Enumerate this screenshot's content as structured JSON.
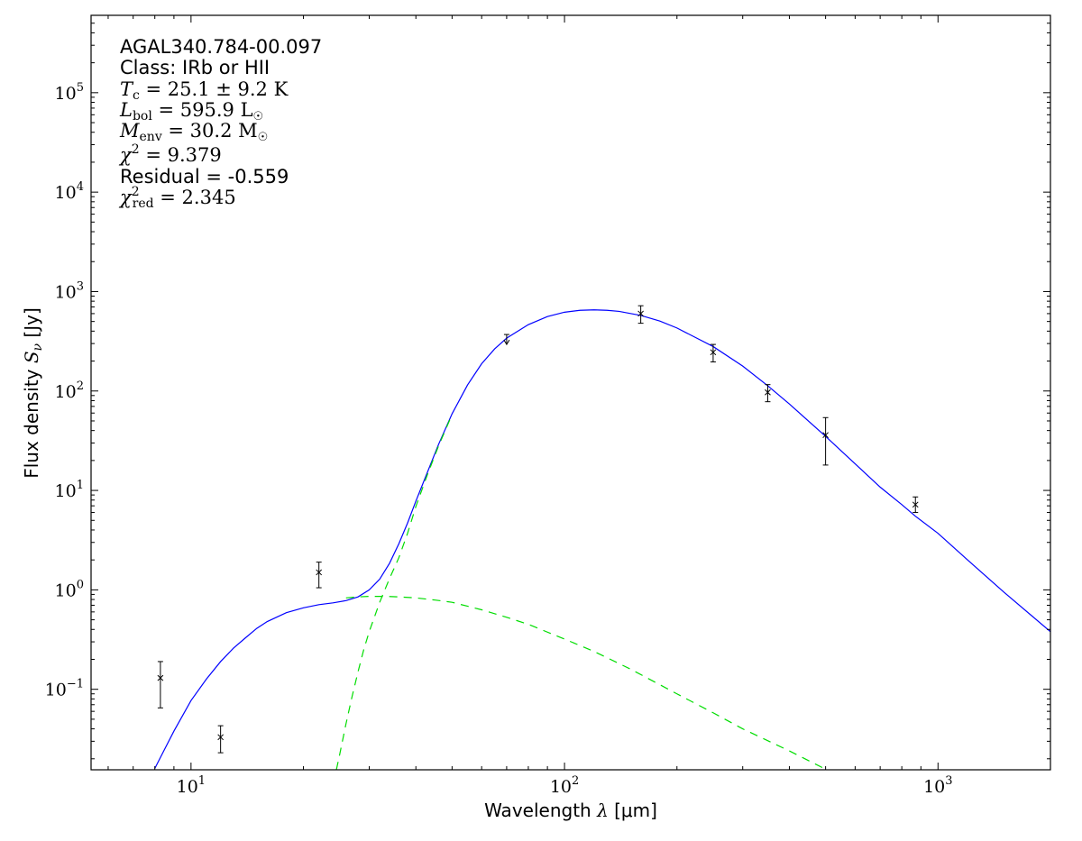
{
  "chart_data": {
    "type": "line",
    "title": "",
    "xlabel_pre": "Wavelength ",
    "xlabel_sym": "λ",
    "xlabel_unit": " [μm]",
    "ylabel_pre": "Flux density ",
    "ylabel_sym": "S",
    "ylabel_sub": "ν",
    "ylabel_unit": " [Jy]",
    "xscale": "log",
    "yscale": "log",
    "xlim": [
      5.4,
      2000
    ],
    "ylim": [
      0.0155,
      600000
    ],
    "grid": false,
    "x_ticks": [
      {
        "value": 10,
        "base": "10",
        "exp": "1"
      },
      {
        "value": 100,
        "base": "10",
        "exp": "2"
      },
      {
        "value": 1000,
        "base": "10",
        "exp": "3"
      }
    ],
    "y_ticks": [
      {
        "value": 0.1,
        "base": "10",
        "exp": "−1"
      },
      {
        "value": 1,
        "base": "10",
        "exp": "0"
      },
      {
        "value": 10,
        "base": "10",
        "exp": "1"
      },
      {
        "value": 100,
        "base": "10",
        "exp": "2"
      },
      {
        "value": 1000,
        "base": "10",
        "exp": "3"
      },
      {
        "value": 10000,
        "base": "10",
        "exp": "4"
      },
      {
        "value": 100000,
        "base": "10",
        "exp": "5"
      }
    ],
    "annotations": {
      "source": "AGAL340.784-00.097",
      "class_line": "Class: IRb or HII",
      "tc": {
        "sym": "T",
        "sub": "c",
        "val": " = 25.1 ± 9.2 K"
      },
      "lbol": {
        "sym": "L",
        "sub": "bol",
        "val": " = 595.9 L",
        "valsub": "☉"
      },
      "menv": {
        "sym": "M",
        "sub": "env",
        "val": " = 30.2 M",
        "valsub": "☉"
      },
      "chi2": {
        "sym": "χ",
        "sup": "2",
        "val": " = 9.379"
      },
      "residual_line": "Residual = -0.559",
      "chi2red": {
        "sym": "χ",
        "sup": "2",
        "sub": "red",
        "val": " = 2.345"
      }
    },
    "series": [
      {
        "role": "total",
        "color": "#0000ff",
        "style": "solid",
        "x": [
          8.0,
          8.5,
          9.0,
          10,
          11,
          12,
          13,
          14,
          15,
          16,
          18,
          20,
          22,
          24,
          26,
          28,
          30,
          32,
          34,
          36,
          38,
          40,
          43,
          46,
          50,
          55,
          60,
          65,
          70,
          80,
          90,
          100,
          110,
          120,
          130,
          140,
          160,
          180,
          200,
          250,
          300,
          350,
          400,
          500,
          600,
          700,
          800,
          870,
          1000,
          1200,
          1500,
          2000
        ],
        "y": [
          0.016,
          0.025,
          0.038,
          0.077,
          0.127,
          0.19,
          0.26,
          0.33,
          0.41,
          0.48,
          0.59,
          0.66,
          0.71,
          0.74,
          0.78,
          0.85,
          1.0,
          1.28,
          1.85,
          2.9,
          4.7,
          7.8,
          15.4,
          29,
          59,
          115,
          188,
          265,
          340,
          465,
          560,
          620,
          648,
          655,
          648,
          632,
          575,
          505,
          430,
          280,
          178,
          113,
          74,
          35,
          18.5,
          10.8,
          7.2,
          5.5,
          3.7,
          2.0,
          0.95,
          0.38
        ]
      },
      {
        "role": "warm-component",
        "color": "#00dd00",
        "style": "dashed",
        "x": [
          26,
          28,
          30,
          33,
          36,
          40,
          45,
          50,
          60,
          70,
          80,
          100,
          120,
          150,
          200,
          250,
          300,
          400,
          500,
          600
        ],
        "y": [
          0.83,
          0.85,
          0.86,
          0.86,
          0.85,
          0.83,
          0.79,
          0.75,
          0.63,
          0.53,
          0.45,
          0.32,
          0.24,
          0.16,
          0.09,
          0.058,
          0.04,
          0.024,
          0.0157,
          0.011
        ]
      },
      {
        "role": "cold-component",
        "color": "#00dd00",
        "style": "dashed",
        "x": [
          24.5,
          25,
          26,
          27,
          28,
          29,
          30,
          32,
          34,
          36,
          38,
          40,
          43,
          46,
          50
        ],
        "y": [
          0.0155,
          0.022,
          0.045,
          0.085,
          0.15,
          0.25,
          0.38,
          0.75,
          1.3,
          2.1,
          3.7,
          6.9,
          14.6,
          28,
          58
        ]
      }
    ],
    "points": [
      {
        "x": 8.28,
        "y": 0.13,
        "lo": 0.065,
        "hi": 0.19,
        "upper_limit": false
      },
      {
        "x": 12.0,
        "y": 0.033,
        "lo": 0.023,
        "hi": 0.043,
        "upper_limit": false
      },
      {
        "x": 22.0,
        "y": 1.5,
        "lo": 1.05,
        "hi": 1.9,
        "upper_limit": false
      },
      {
        "x": 70.0,
        "y": 370,
        "lo": 300,
        "hi": 390,
        "upper_limit": true
      },
      {
        "x": 160.0,
        "y": 600,
        "lo": 480,
        "hi": 720,
        "upper_limit": false
      },
      {
        "x": 250.0,
        "y": 245,
        "lo": 196,
        "hi": 294,
        "upper_limit": false
      },
      {
        "x": 350.0,
        "y": 97,
        "lo": 78,
        "hi": 116,
        "upper_limit": false
      },
      {
        "x": 500.0,
        "y": 36,
        "lo": 18,
        "hi": 54,
        "upper_limit": false
      },
      {
        "x": 870.0,
        "y": 7.2,
        "lo": 6.0,
        "hi": 8.6,
        "upper_limit": false
      }
    ]
  }
}
